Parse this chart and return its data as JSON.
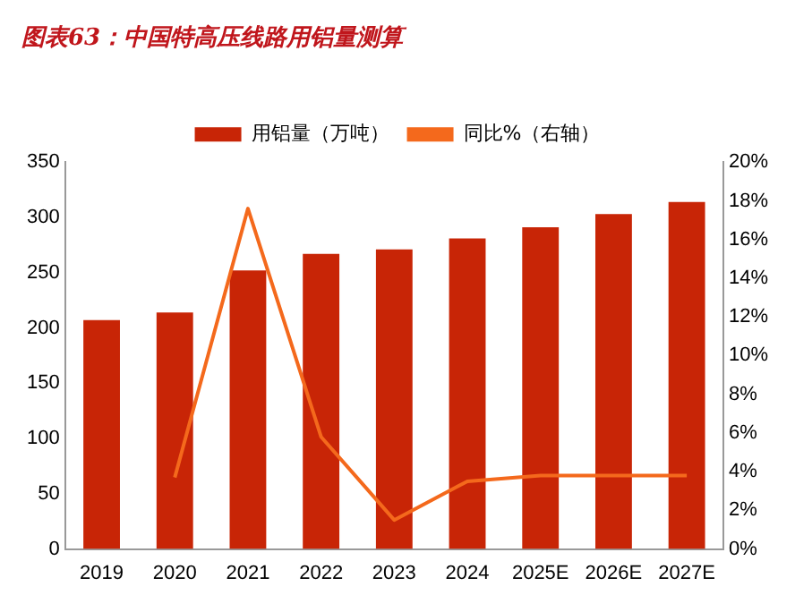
{
  "chart_data": {
    "type": "bar",
    "title": "图表63：中国特高压线路用铝量测算",
    "categories": [
      "2019",
      "2020",
      "2021",
      "2022",
      "2023",
      "2024",
      "2025E",
      "2026E",
      "2027E"
    ],
    "series": [
      {
        "name": "用铝量（万吨）",
        "color": "#c82506",
        "values": [
          207,
          214,
          252,
          267,
          271,
          281,
          291,
          303,
          314
        ]
      },
      {
        "name": "同比%（右轴）",
        "type": "line",
        "axis": "y2",
        "color": "#f4691c",
        "values": [
          null,
          3.7,
          17.6,
          5.8,
          1.5,
          3.5,
          3.8,
          3.8,
          3.8
        ]
      }
    ],
    "ylim": [
      0,
      350
    ],
    "yticks": [
      0,
      50,
      100,
      150,
      200,
      250,
      300,
      350
    ],
    "y2lim": [
      0,
      20
    ],
    "y2ticks": [
      {
        "value": 0,
        "label": "0%"
      },
      {
        "value": 2,
        "label": "2%"
      },
      {
        "value": 4,
        "label": "4%"
      },
      {
        "value": 6,
        "label": "6%"
      },
      {
        "value": 8,
        "label": "8%"
      },
      {
        "value": 10,
        "label": "10%"
      },
      {
        "value": 12,
        "label": "12%"
      },
      {
        "value": 14,
        "label": "14%"
      },
      {
        "value": 16,
        "label": "16%"
      },
      {
        "value": 18,
        "label": "18%"
      },
      {
        "value": 20,
        "label": "20%"
      }
    ],
    "grid": false,
    "legend": "top",
    "marker": "none",
    "line_style": "solid"
  }
}
